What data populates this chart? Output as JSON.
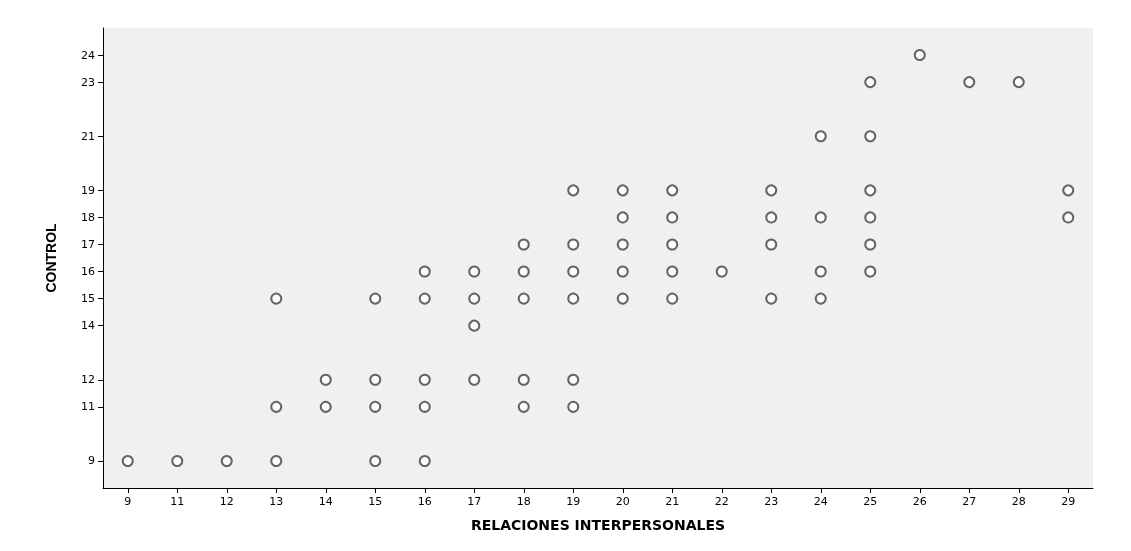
{
  "chart_data": {
    "type": "scatter",
    "xlabel": "RELACIONES INTERPERSONALES",
    "ylabel": "CONTROL",
    "categories": [
      "9",
      "11",
      "12",
      "13",
      "14",
      "15",
      "16",
      "17",
      "18",
      "19",
      "20",
      "21",
      "22",
      "23",
      "24",
      "25",
      "26",
      "27",
      "28",
      "29"
    ],
    "ylim": [
      8,
      25
    ],
    "yticks": [
      9,
      11,
      12,
      14,
      15,
      16,
      17,
      18,
      19,
      21,
      23,
      24
    ],
    "series": [
      {
        "color": "#404040",
        "x": [
          "9",
          "11",
          "12",
          "13",
          "13",
          "13",
          "14",
          "14",
          "15",
          "15",
          "15",
          "15",
          "16",
          "16",
          "16",
          "16",
          "16",
          "17",
          "17",
          "17",
          "17",
          "18",
          "18",
          "18",
          "18",
          "18",
          "19",
          "19",
          "19",
          "19",
          "19",
          "19",
          "20",
          "20",
          "20",
          "20",
          "20",
          "21",
          "21",
          "21",
          "21",
          "21",
          "22",
          "23",
          "23",
          "23",
          "23",
          "24",
          "24",
          "24",
          "24",
          "25",
          "25",
          "25",
          "25",
          "25",
          "25",
          "26",
          "27",
          "28",
          "29",
          "29"
        ],
        "values": [
          9,
          9,
          9,
          15,
          11,
          9,
          12,
          11,
          15,
          12,
          11,
          9,
          16,
          15,
          12,
          11,
          9,
          16,
          15,
          14,
          12,
          17,
          16,
          15,
          12,
          11,
          19,
          17,
          16,
          15,
          12,
          11,
          19,
          18,
          17,
          16,
          15,
          19,
          18,
          17,
          16,
          15,
          16,
          19,
          18,
          17,
          15,
          21,
          18,
          16,
          15,
          23,
          21,
          19,
          18,
          17,
          16,
          24,
          23,
          23,
          19,
          18
        ]
      }
    ],
    "marker": "circle",
    "grid": false
  }
}
